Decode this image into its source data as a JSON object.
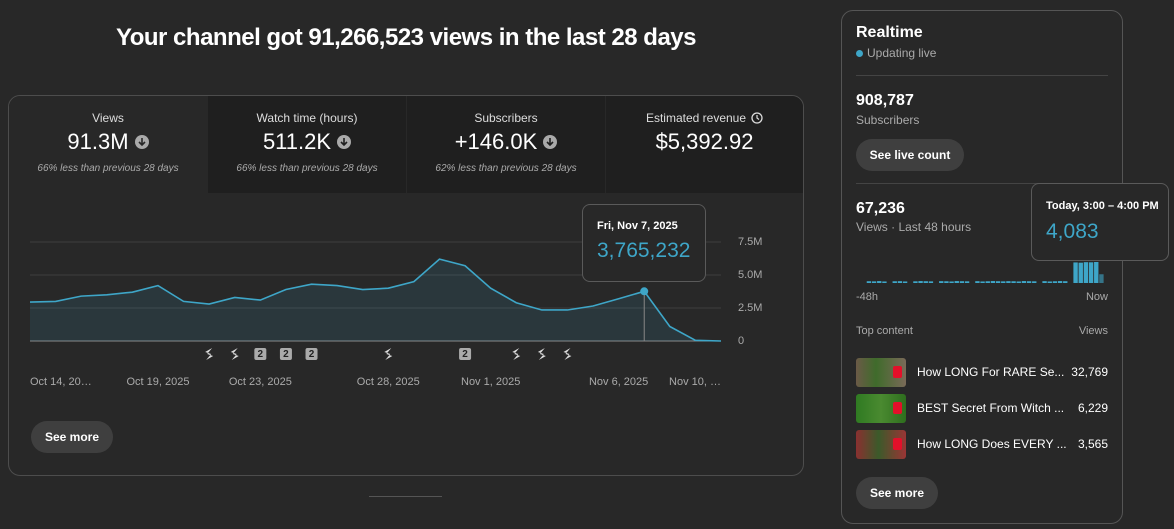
{
  "headline": "Your channel got 91,266,523 views in the last 28 days",
  "metrics": [
    {
      "label": "Views",
      "value": "91.3M",
      "note": "66% less than previous 28 days"
    },
    {
      "label": "Watch time (hours)",
      "value": "511.2K",
      "note": "66% less than previous 28 days"
    },
    {
      "label": "Subscribers",
      "value": "+146.0K",
      "note": "62% less than previous 28 days"
    },
    {
      "label": "Estimated revenue",
      "value": "$5,392.92"
    }
  ],
  "see_more": "See more",
  "chart_data": [
    {
      "type": "line",
      "color": "#3ea6c8",
      "categories": [
        "Oct 14, 20…",
        null,
        null,
        null,
        null,
        "Oct 19, 2025",
        null,
        null,
        null,
        "Oct 23, 2025",
        null,
        null,
        null,
        null,
        "Oct 28, 2025",
        null,
        null,
        null,
        "Nov 1, 2025",
        null,
        null,
        null,
        null,
        "Nov 6, 2025",
        null,
        null,
        null,
        "Nov 10, …"
      ],
      "values": [
        2950000,
        3000000,
        3400000,
        3500000,
        3700000,
        4200000,
        3000000,
        2800000,
        3300000,
        3100000,
        3900000,
        4300000,
        4200000,
        3900000,
        4000000,
        4500000,
        6200000,
        5700000,
        4000000,
        2900000,
        2350000,
        2350000,
        2650000,
        3200000,
        3765232,
        1100000,
        50000,
        0
      ],
      "value_labels": [
        null,
        null,
        null,
        null,
        null,
        null,
        null,
        null,
        null,
        null,
        null,
        null,
        null,
        null,
        null,
        null,
        null,
        null,
        null,
        null,
        null,
        null,
        null,
        null,
        "3,765,232",
        null,
        null,
        null
      ],
      "tooltip_title": "Fri, Nov 7, 2025",
      "upload_counts": [
        null,
        null,
        null,
        null,
        null,
        null,
        null,
        1,
        1,
        2,
        2,
        2,
        null,
        null,
        1,
        null,
        null,
        2,
        null,
        1,
        1,
        1,
        null,
        null,
        null,
        null,
        null,
        null
      ],
      "ylim": [
        0,
        7500000
      ],
      "yticks": [
        0,
        {
          "value": 2500000,
          "label": "2.5M"
        },
        {
          "value": 5000000,
          "label": "5.0M"
        },
        {
          "value": 7500000,
          "label": "7.5M"
        }
      ],
      "grid": true
    },
    {
      "type": "bar",
      "color": "#3ea6c8",
      "values": [
        0,
        0,
        350,
        320,
        380,
        300,
        0,
        340,
        360,
        300,
        0,
        330,
        380,
        350,
        320,
        0,
        360,
        340,
        300,
        380,
        350,
        330,
        0,
        360,
        300,
        340,
        380,
        350,
        320,
        360,
        340,
        300,
        380,
        350,
        330,
        0,
        360,
        300,
        340,
        380,
        350,
        0,
        4000,
        3950,
        4050,
        4020,
        4083,
        1700
      ],
      "value_labels": [
        null,
        null,
        null,
        null,
        null,
        null,
        null,
        null,
        null,
        null,
        null,
        null,
        null,
        null,
        null,
        null,
        null,
        null,
        null,
        null,
        null,
        null,
        null,
        null,
        null,
        null,
        null,
        null,
        null,
        null,
        null,
        null,
        null,
        null,
        null,
        null,
        null,
        null,
        null,
        null,
        null,
        null,
        null,
        null,
        null,
        null,
        "4,083",
        null
      ],
      "tooltip_title": "Today, 3:00 – 4:00 PM",
      "x_start_label": "-48h",
      "x_end_label": "Now"
    }
  ],
  "realtime": {
    "title": "Realtime",
    "status": "Updating live",
    "subscribers": {
      "value": "908,787",
      "label": "Subscribers",
      "button": "See live count"
    },
    "views": {
      "value": "67,236",
      "label": "Views · Last 48 hours"
    },
    "top_content": {
      "heading": "Top content",
      "column": "Views",
      "items": [
        {
          "title": "How LONG For RARE Se...",
          "views": "32,769"
        },
        {
          "title": "BEST Secret From Witch ...",
          "views": "6,229"
        },
        {
          "title": "How LONG Does EVERY ...",
          "views": "3,565"
        }
      ],
      "button": "See more"
    }
  }
}
